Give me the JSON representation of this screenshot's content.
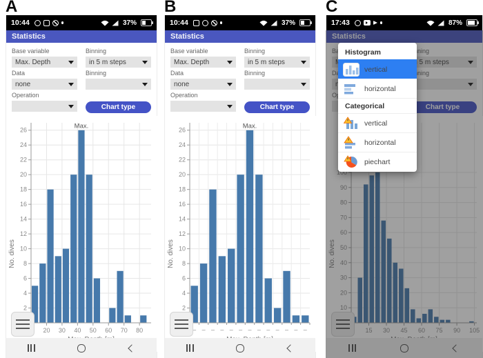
{
  "app": {
    "header_title": "Statistics"
  },
  "colors": {
    "header_bg": "#4a57bf",
    "button_accent": "#4453c6",
    "bar": "#4679ab",
    "popup_highlight": "#2d7ff2",
    "statusbar_bg": "#000000",
    "navbar_bg": "#f1f1f1"
  },
  "form": {
    "base_variable_label": "Base variable",
    "base_variable_value": "Max. Depth",
    "binning1_label": "Binning",
    "binning1_value": "in 5 m steps",
    "data_label": "Data",
    "data_value": "none",
    "binning2_label": "Binning",
    "binning2_value": "",
    "operation_label": "Operation",
    "operation_value": "",
    "chart_type_button": "Chart type"
  },
  "panels": [
    {
      "letter": "A",
      "status": {
        "time": "10:44",
        "battery_percent": "37%",
        "left_icons": [
          "whatsapp-icon",
          "gallery-icon",
          "compass-icon",
          "dot-icon"
        ],
        "right_icons": [
          "wifi-icon",
          "cellular-icon",
          "battery-icon"
        ]
      }
    },
    {
      "letter": "B",
      "status": {
        "time": "10:44",
        "battery_percent": "37%",
        "left_icons": [
          "gallery-icon",
          "whatsapp-icon",
          "compass-icon",
          "dot-icon"
        ],
        "right_icons": [
          "wifi-icon",
          "cellular-icon",
          "battery-icon"
        ]
      }
    },
    {
      "letter": "C",
      "status": {
        "time": "17:43",
        "battery_percent": "87%",
        "left_icons": [
          "whatsapp-icon",
          "youtube-icon",
          "speaker-icon",
          "dot-icon"
        ],
        "right_icons": [
          "wifi-icon",
          "cellular-icon",
          "battery-icon"
        ]
      }
    }
  ],
  "nav": {
    "icons": [
      "recents-icon",
      "home-icon",
      "back-icon"
    ]
  },
  "popup": {
    "sections": [
      {
        "header": "Histogram",
        "items": [
          {
            "label": "vertical",
            "icon": "histogram-vertical-icon",
            "selected": true
          },
          {
            "label": "horizontal",
            "icon": "histogram-horizontal-icon",
            "selected": false
          }
        ]
      },
      {
        "header": "Categorical",
        "items": [
          {
            "label": "vertical",
            "icon": "categorical-vertical-icon",
            "selected": false
          },
          {
            "label": "horizontal",
            "icon": "categorical-horizontal-icon",
            "selected": false
          },
          {
            "label": "piechart",
            "icon": "piechart-icon",
            "selected": false
          }
        ]
      }
    ]
  },
  "chart_data": [
    {
      "type": "bar",
      "panel": "A",
      "xlabel": "Max. Depth [m]",
      "ylabel": "No. dives",
      "bin_start": 10,
      "bin_width": 5,
      "values": [
        5,
        8,
        18,
        9,
        10,
        20,
        26,
        20,
        6,
        0,
        2,
        7,
        1,
        0,
        1
      ],
      "xlim": [
        10,
        87.5
      ],
      "ylim": [
        0,
        27
      ],
      "xticks": [
        10,
        20,
        30,
        40,
        50,
        60,
        70,
        80
      ],
      "ytick_step": 2,
      "ytick_max": 26,
      "annotation": "Max.",
      "grid": "ticks",
      "legend": false
    },
    {
      "type": "bar",
      "panel": "B",
      "categorical": true,
      "xlabel": "Max. Depth [m]",
      "ylabel": "No. dives",
      "values": [
        5,
        8,
        18,
        9,
        10,
        20,
        26,
        20,
        6,
        2,
        7,
        1,
        1
      ],
      "bin_labels": [
        "–",
        "–",
        "–",
        "–",
        "–",
        "–",
        "–",
        "–",
        "–",
        "–",
        "–",
        "–",
        "–"
      ],
      "ylim": [
        0,
        27
      ],
      "ytick_step": 2,
      "ytick_max": 26,
      "annotation": "Max.",
      "grid": "bins",
      "legend": false
    },
    {
      "type": "bar",
      "panel": "C",
      "xlabel": "Max. Depth [m]",
      "ylabel": "No. dives",
      "bin_start": 0,
      "bin_width": 5,
      "values": [
        4,
        30,
        92,
        98,
        100,
        68,
        56,
        40,
        36,
        23,
        9,
        3,
        6,
        9,
        4,
        2,
        2,
        0,
        0,
        0,
        1
      ],
      "xlim": [
        0,
        107
      ],
      "ylim": [
        0,
        133
      ],
      "xticks": [
        0,
        15,
        30,
        45,
        60,
        75,
        90,
        105
      ],
      "ytick_step": 10,
      "ytick_max": 100,
      "annotation": null,
      "grid": "ticks",
      "legend": false
    }
  ]
}
